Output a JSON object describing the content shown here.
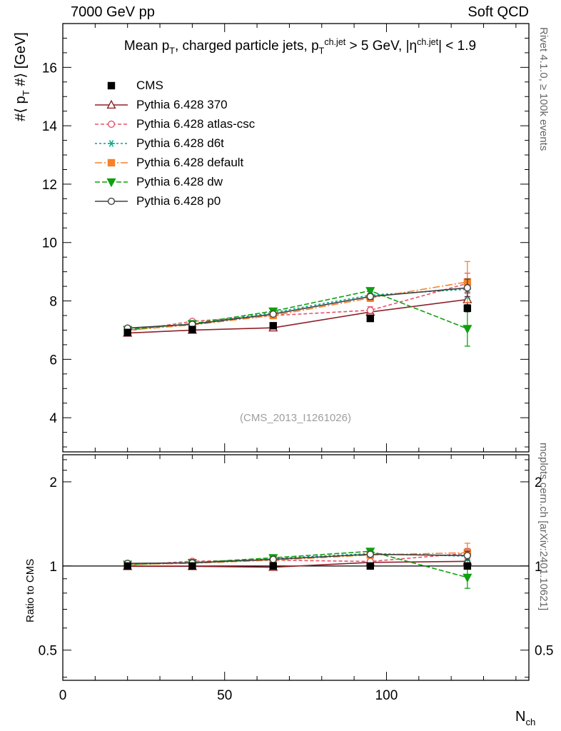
{
  "header": {
    "left": "7000 GeV pp",
    "right": "Soft QCD"
  },
  "side_notes": {
    "top_right": "Rivet 4.1.0, ≥ 100k events",
    "bottom_right": "mcplots.cern.ch [arXiv:2401.10621]"
  },
  "watermark": "(CMS_2013_I1261026)",
  "labels": {
    "title_segments": [
      {
        "t": "Mean p"
      },
      {
        "t": "T",
        "s": "sub"
      },
      {
        "t": ", charged particle jets, p"
      },
      {
        "t": "T",
        "s": "sub"
      },
      {
        "t": "ch.jet",
        "s": "sup"
      },
      {
        "t": " > 5 GeV,  |"
      },
      {
        "t": "η"
      },
      {
        "t": "ch.jet",
        "s": "sup"
      },
      {
        "t": "| < 1.9"
      }
    ],
    "y_label_segments": [
      {
        "t": "#⟨ p"
      },
      {
        "t": "T",
        "s": "sub"
      },
      {
        "t": " #⟩ [GeV]"
      }
    ],
    "ratio_y_label": "Ratio to CMS",
    "x_label_segments": [
      {
        "t": "N"
      },
      {
        "t": "ch",
        "s": "sub"
      }
    ]
  },
  "chart_data": {
    "type": "line",
    "title": "Mean pT, charged particle jets, pT^ch.jet > 5 GeV, |eta^ch.jet| < 1.9",
    "xlabel": "Nch",
    "ylabel": "<pT> [GeV]",
    "x": [
      20,
      40,
      65,
      95,
      125
    ],
    "x_range": [
      0,
      144
    ],
    "x_ticks": [
      0,
      50,
      100
    ],
    "x_minor_step": 10,
    "main_panel": {
      "ylim": [
        2.83,
        17.5
      ],
      "yticks": [
        4,
        6,
        8,
        10,
        12,
        14,
        16
      ],
      "y_minor_step": 0.5
    },
    "ratio_panel": {
      "scale": "log",
      "ylim": [
        0.39,
        2.5
      ],
      "yticks": [
        0.5,
        1,
        2
      ],
      "minor_ticks": [
        0.4,
        0.6,
        0.7,
        0.8,
        0.9,
        2.2,
        2.4
      ],
      "reference_line": 1
    },
    "legend_position": "top-left",
    "series": [
      {
        "name": "CMS",
        "color": "#000000",
        "marker": "square",
        "fill": true,
        "dash": "none",
        "values": [
          6.92,
          7.02,
          7.15,
          7.4,
          7.75
        ],
        "errors": [
          0.05,
          0.05,
          0.06,
          0.08,
          0.12
        ],
        "ratio": [
          1.0,
          1.0,
          1.0,
          1.0,
          1.0
        ],
        "ratio_errors": [
          0.007,
          0.007,
          0.008,
          0.011,
          0.015
        ]
      },
      {
        "name": "Pythia 6.428 370",
        "color": "#8f2029",
        "marker": "triangle-up",
        "fill": false,
        "dash": "",
        "values": [
          6.9,
          7.0,
          7.08,
          7.62,
          8.05
        ],
        "errors": [
          0.03,
          0.04,
          0.05,
          0.12,
          0.25
        ],
        "ratio": [
          0.997,
          0.997,
          0.99,
          1.03,
          1.039
        ],
        "ratio_errors": [
          0.004,
          0.006,
          0.007,
          0.016,
          0.032
        ]
      },
      {
        "name": "Pythia 6.428 atlas-csc",
        "color": "#e4546c",
        "marker": "circle",
        "fill": false,
        "dash": "5,3",
        "values": [
          6.97,
          7.3,
          7.5,
          7.68,
          8.6
        ],
        "errors": [
          0.03,
          0.05,
          0.06,
          0.12,
          0.35
        ],
        "ratio": [
          1.007,
          1.04,
          1.049,
          1.038,
          1.11
        ],
        "ratio_errors": [
          0.004,
          0.007,
          0.008,
          0.016,
          0.045
        ]
      },
      {
        "name": "Pythia 6.428 d6t",
        "color": "#00a68a",
        "marker": "star",
        "fill": true,
        "dash": "3,3",
        "values": [
          7.0,
          7.2,
          7.6,
          8.2,
          8.4
        ],
        "errors": [
          0.03,
          0.05,
          0.06,
          0.12,
          0.3
        ],
        "ratio": [
          1.012,
          1.026,
          1.063,
          1.108,
          1.084
        ],
        "ratio_errors": [
          0.004,
          0.007,
          0.008,
          0.016,
          0.039
        ]
      },
      {
        "name": "Pythia 6.428 default",
        "color": "#f6812a",
        "marker": "square",
        "fill": true,
        "dash": "10,3,2,3",
        "values": [
          7.0,
          7.18,
          7.5,
          8.1,
          8.65
        ],
        "errors": [
          0.03,
          0.05,
          0.06,
          0.12,
          0.7
        ],
        "ratio": [
          1.012,
          1.023,
          1.049,
          1.095,
          1.116
        ],
        "ratio_errors": [
          0.004,
          0.007,
          0.008,
          0.016,
          0.09
        ]
      },
      {
        "name": "Pythia 6.428 dw",
        "color": "#0fa00f",
        "marker": "triangle-down",
        "fill": true,
        "dash": "7,3",
        "values": [
          7.02,
          7.22,
          7.65,
          8.35,
          7.05
        ],
        "errors": [
          0.03,
          0.05,
          0.06,
          0.1,
          0.6
        ],
        "ratio": [
          1.014,
          1.028,
          1.07,
          1.128,
          0.91
        ],
        "ratio_errors": [
          0.004,
          0.007,
          0.008,
          0.014,
          0.078
        ]
      },
      {
        "name": "Pythia 6.428 p0",
        "color": "#404040",
        "marker": "circle",
        "fill": false,
        "dash": "",
        "values": [
          7.07,
          7.2,
          7.55,
          8.15,
          8.45
        ],
        "errors": [
          0.03,
          0.04,
          0.05,
          0.1,
          0.3
        ],
        "ratio": [
          1.022,
          1.026,
          1.056,
          1.101,
          1.09
        ],
        "ratio_errors": [
          0.004,
          0.006,
          0.007,
          0.014,
          0.039
        ]
      }
    ]
  }
}
